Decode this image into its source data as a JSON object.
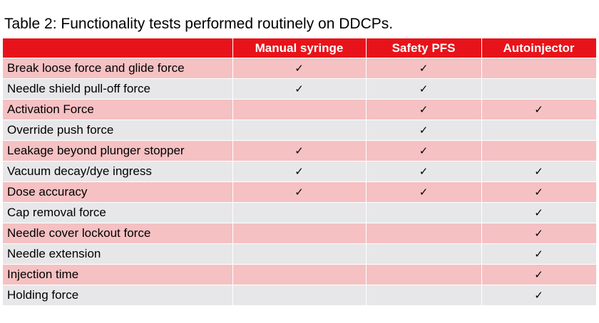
{
  "caption": "Table 2: Functionality tests performed routinely on DDCPs.",
  "columns": [
    "",
    "Manual syringe",
    "Safety PFS",
    "Autoinjector"
  ],
  "check_glyph": "✓",
  "colors": {
    "header_bg": "#e8131a",
    "header_text": "#ffffff",
    "row_odd": "#f5c1c3",
    "row_even": "#e7e7e9"
  },
  "rows": [
    {
      "label": "Break loose force and glide force",
      "checks": [
        true,
        true,
        false
      ]
    },
    {
      "label": "Needle shield pull-off force",
      "checks": [
        true,
        true,
        false
      ]
    },
    {
      "label": "Activation Force",
      "checks": [
        false,
        true,
        true
      ]
    },
    {
      "label": "Override push force",
      "checks": [
        false,
        true,
        false
      ]
    },
    {
      "label": "Leakage beyond plunger stopper",
      "checks": [
        true,
        true,
        false
      ]
    },
    {
      "label": "Vacuum decay/dye ingress",
      "checks": [
        true,
        true,
        true
      ]
    },
    {
      "label": "Dose accuracy",
      "checks": [
        true,
        true,
        true
      ]
    },
    {
      "label": "Cap removal force",
      "checks": [
        false,
        false,
        true
      ]
    },
    {
      "label": "Needle cover lockout force",
      "checks": [
        false,
        false,
        true
      ]
    },
    {
      "label": "Needle extension",
      "checks": [
        false,
        false,
        true
      ]
    },
    {
      "label": "Injection time",
      "checks": [
        false,
        false,
        true
      ]
    },
    {
      "label": "Holding force",
      "checks": [
        false,
        false,
        true
      ]
    }
  ]
}
